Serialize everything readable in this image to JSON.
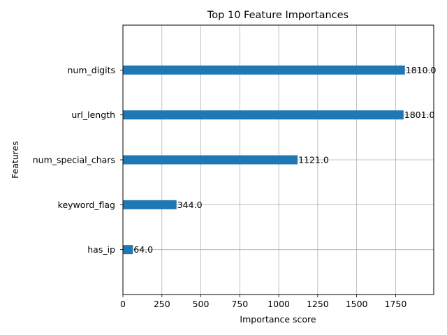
{
  "chart_data": {
    "type": "bar",
    "orientation": "horizontal",
    "title": "Top 10 Feature Importances",
    "xlabel": "Importance score",
    "ylabel": "Features",
    "categories": [
      "has_ip",
      "keyword_flag",
      "num_special_chars",
      "url_length",
      "num_digits"
    ],
    "values": [
      64,
      344,
      1121,
      1801,
      1810
    ],
    "data_labels": [
      "64.0",
      "344.0",
      "1121.0",
      "1801.0",
      "1810.0"
    ],
    "xlim": [
      0,
      2000
    ],
    "xticks": [
      0,
      250,
      500,
      750,
      1000,
      1250,
      1500,
      1750
    ],
    "grid": true,
    "bar_color": "#1f77b4"
  }
}
